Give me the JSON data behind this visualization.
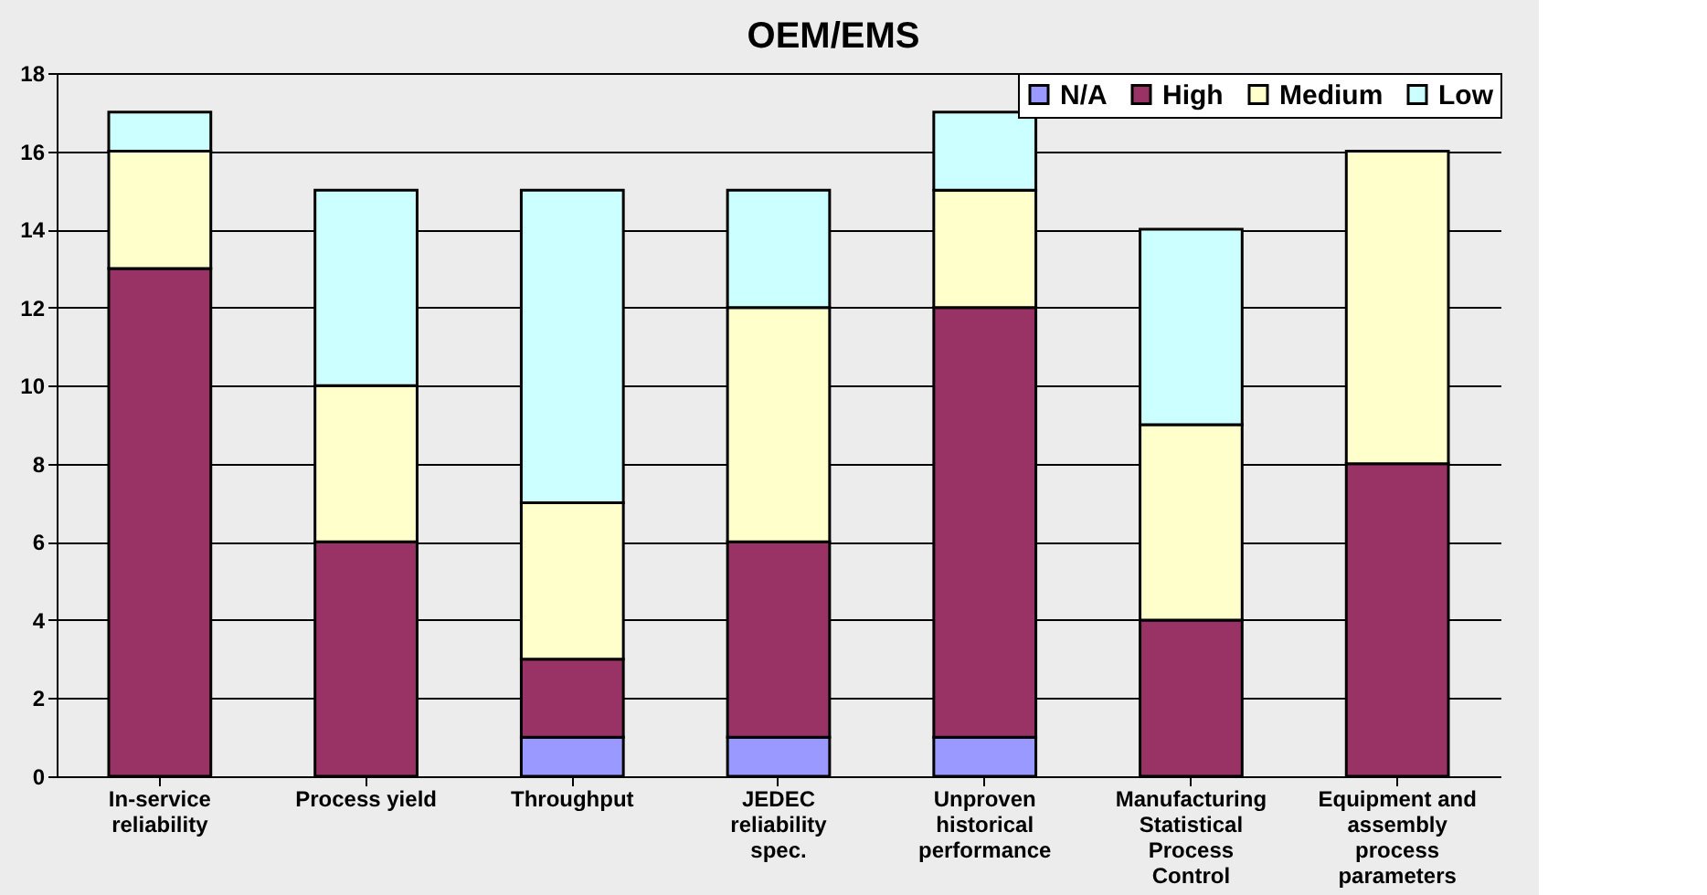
{
  "chart_data": {
    "type": "bar",
    "title": "OEM/EMS",
    "stacked": true,
    "categories": [
      "In-service reliability",
      "Process yield",
      "Throughput",
      "JEDEC reliability spec.",
      "Unproven historical performance",
      "Manufacturing Statistical Process Control",
      "Equipment and assembly process parameters"
    ],
    "series": [
      {
        "name": "N/A",
        "color": "#9999ff",
        "values": [
          0,
          0,
          1,
          1,
          1,
          0,
          0
        ]
      },
      {
        "name": "High",
        "color": "#993366",
        "values": [
          13,
          6,
          2,
          5,
          11,
          4,
          8
        ]
      },
      {
        "name": "Medium",
        "color": "#ffffcc",
        "values": [
          3,
          4,
          4,
          6,
          3,
          5,
          8
        ]
      },
      {
        "name": "Low",
        "color": "#ccffff",
        "values": [
          1,
          5,
          8,
          3,
          2,
          5,
          0
        ]
      }
    ],
    "ylim": [
      0,
      18
    ],
    "yticks": [
      0,
      2,
      4,
      6,
      8,
      10,
      12,
      14,
      16,
      18
    ],
    "grid": "y",
    "legend": "top right"
  }
}
